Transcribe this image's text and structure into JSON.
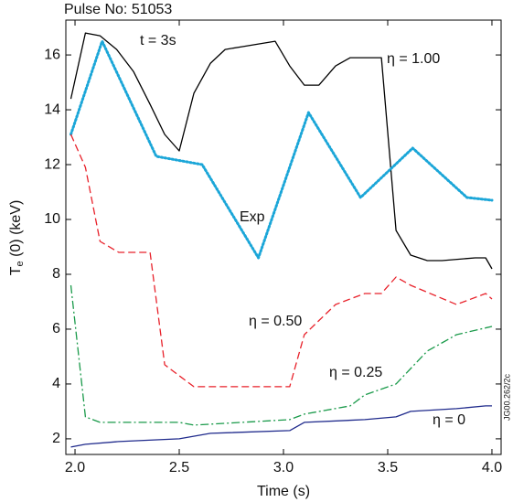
{
  "chart_data": {
    "type": "line",
    "title": "Pulse No: 51053",
    "annotation": "t = 3s",
    "code_label": "JG00.262/2c",
    "x_label": "Time (s)",
    "y_label": [
      "T",
      "e",
      " (0) (keV)"
    ],
    "xlim": [
      1.956,
      4.044
    ],
    "ylim": [
      1.43,
      17.27
    ],
    "xticks": [
      {
        "value": 2,
        "label": "2.0"
      },
      {
        "value": 2.5,
        "label": "2.5"
      },
      {
        "value": 3,
        "label": "3.0"
      },
      {
        "value": 3.5,
        "label": "3.5"
      },
      {
        "value": 4,
        "label": "4.0"
      }
    ],
    "yticks": [
      2,
      4,
      6,
      8,
      10,
      12,
      14,
      16
    ],
    "series": [
      {
        "name": "η = 1.00",
        "color": "#000000",
        "style": "solid",
        "x": [
          1.98,
          2.05,
          2.12,
          2.2,
          2.28,
          2.36,
          2.43,
          2.5,
          2.57,
          2.65,
          2.72,
          2.8,
          2.96,
          3.03,
          3.1,
          3.17,
          3.25,
          3.32,
          3.39,
          3.47,
          3.54,
          3.61,
          3.69,
          3.76,
          3.92,
          3.97,
          4.0
        ],
        "values": [
          14.4,
          16.8,
          16.7,
          16.2,
          15.4,
          14.2,
          13.1,
          12.5,
          14.6,
          15.7,
          16.2,
          16.3,
          16.5,
          15.6,
          14.9,
          14.9,
          15.6,
          15.9,
          15.9,
          15.9,
          9.6,
          8.7,
          8.5,
          8.5,
          8.6,
          8.6,
          8.2
        ]
      },
      {
        "name": "Exp",
        "color": "#1ba6d8",
        "style": "dotted",
        "x": [
          1.98,
          2.13,
          2.39,
          2.61,
          2.88,
          3.12,
          3.37,
          3.62,
          3.88,
          4.0
        ],
        "values": [
          13.1,
          16.5,
          12.3,
          12.0,
          8.6,
          13.9,
          10.8,
          12.6,
          10.8,
          10.7
        ]
      },
      {
        "name": "η = 0.50",
        "color": "#e8212a",
        "style": "dashed",
        "x": [
          1.98,
          2.05,
          2.12,
          2.21,
          2.36,
          2.43,
          2.5,
          2.57,
          3.03,
          3.1,
          3.25,
          3.39,
          3.47,
          3.54,
          3.61,
          3.83,
          3.97,
          4.0
        ],
        "values": [
          13.1,
          11.9,
          9.2,
          8.8,
          8.8,
          4.7,
          4.3,
          3.9,
          3.9,
          5.8,
          6.9,
          7.3,
          7.3,
          7.9,
          7.6,
          6.9,
          7.3,
          7.1
        ]
      },
      {
        "name": "η = 0.25",
        "color": "#1a9a4a",
        "style": "dashdot",
        "x": [
          1.98,
          2.05,
          2.12,
          2.5,
          2.57,
          3.03,
          3.1,
          3.32,
          3.39,
          3.54,
          3.69,
          3.76,
          3.83,
          4.0
        ],
        "values": [
          7.6,
          2.8,
          2.6,
          2.6,
          2.5,
          2.7,
          2.9,
          3.2,
          3.6,
          4.0,
          5.2,
          5.5,
          5.8,
          6.1
        ]
      },
      {
        "name": "η = 0",
        "color": "#1f2a8c",
        "style": "solid",
        "x": [
          1.98,
          2.05,
          2.21,
          2.5,
          2.65,
          3.03,
          3.1,
          3.39,
          3.54,
          3.61,
          3.83,
          3.97,
          4.0
        ],
        "values": [
          1.7,
          1.8,
          1.9,
          2.0,
          2.2,
          2.3,
          2.6,
          2.7,
          2.8,
          3.0,
          3.1,
          3.2,
          3.2
        ]
      }
    ]
  }
}
